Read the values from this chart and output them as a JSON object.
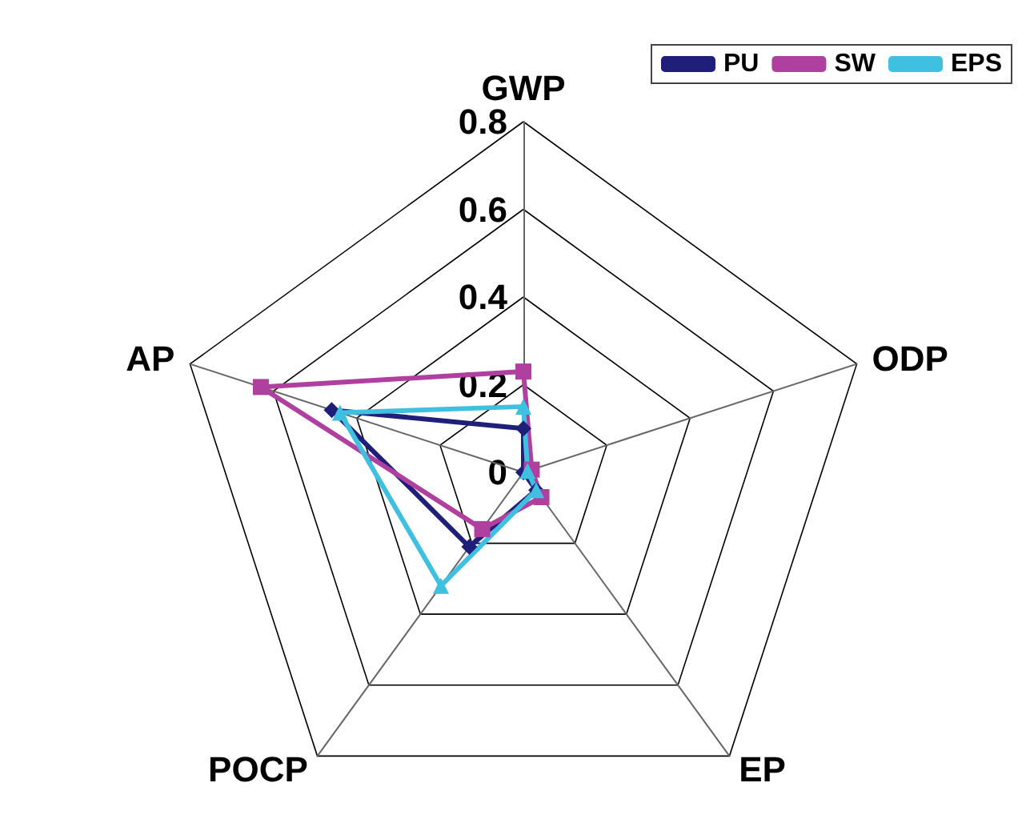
{
  "chart_data": {
    "type": "radar",
    "categories": [
      "GWP",
      "ODP",
      "EP",
      "POCP",
      "AP"
    ],
    "ylim": [
      0,
      0.8
    ],
    "yticks": [
      0,
      0.2,
      0.4,
      0.6,
      0.8
    ],
    "legend": "top right",
    "line_style": "solid",
    "series": [
      {
        "name": "PU",
        "color": "#1f1f7a",
        "marker": "diamond",
        "values": [
          0.1,
          null,
          0.05,
          0.21,
          0.46
        ]
      },
      {
        "name": "SW",
        "color": "#b040a0",
        "marker": "square",
        "values": [
          0.23,
          0.02,
          0.07,
          0.16,
          0.63
        ]
      },
      {
        "name": "EPS",
        "color": "#40c0e0",
        "marker": "triangle",
        "values": [
          0.15,
          0.01,
          0.05,
          0.32,
          0.44
        ]
      }
    ]
  }
}
